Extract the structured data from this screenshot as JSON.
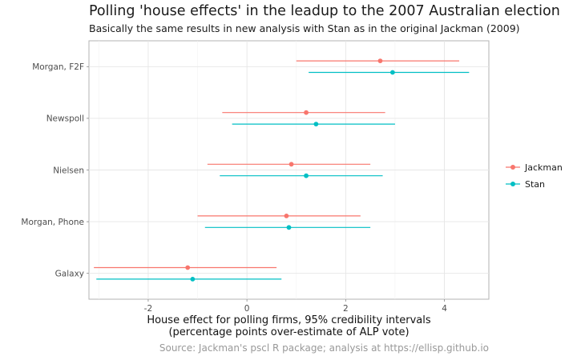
{
  "chart_data": {
    "type": "scatter",
    "title": "Polling 'house effects' in the leadup to the 2007 Australian election",
    "subtitle": "Basically the same results in new analysis with Stan as in the original Jackman (2009)",
    "xlabel_line1": "House effect for polling firms, 95% credibility intervals",
    "xlabel_line2": "(percentage points over-estimate of ALP vote)",
    "caption": "Source: Jackman's pscl R package; analysis at https://ellisp.github.io",
    "categories": [
      "Morgan, F2F",
      "Newspoll",
      "Nielsen",
      "Morgan, Phone",
      "Galaxy"
    ],
    "xlim": [
      -3.2,
      4.9
    ],
    "xticks": [
      -2,
      0,
      2,
      4
    ],
    "xtick_labels": [
      "-2",
      "0",
      "2",
      "4"
    ],
    "grid": true,
    "legend_position": "right",
    "series": [
      {
        "name": "Jackman",
        "color": "#F8766D",
        "estimate": [
          2.7,
          1.2,
          0.9,
          0.8,
          -1.2
        ],
        "lower": [
          1.0,
          -0.5,
          -0.8,
          -1.0,
          -3.1
        ],
        "upper": [
          4.3,
          2.8,
          2.5,
          2.3,
          0.6
        ]
      },
      {
        "name": "Stan",
        "color": "#00BFC4",
        "estimate": [
          2.95,
          1.4,
          1.2,
          0.85,
          -1.1
        ],
        "lower": [
          1.25,
          -0.3,
          -0.55,
          -0.85,
          -3.05
        ],
        "upper": [
          4.5,
          3.0,
          2.75,
          2.5,
          0.7
        ]
      }
    ]
  }
}
